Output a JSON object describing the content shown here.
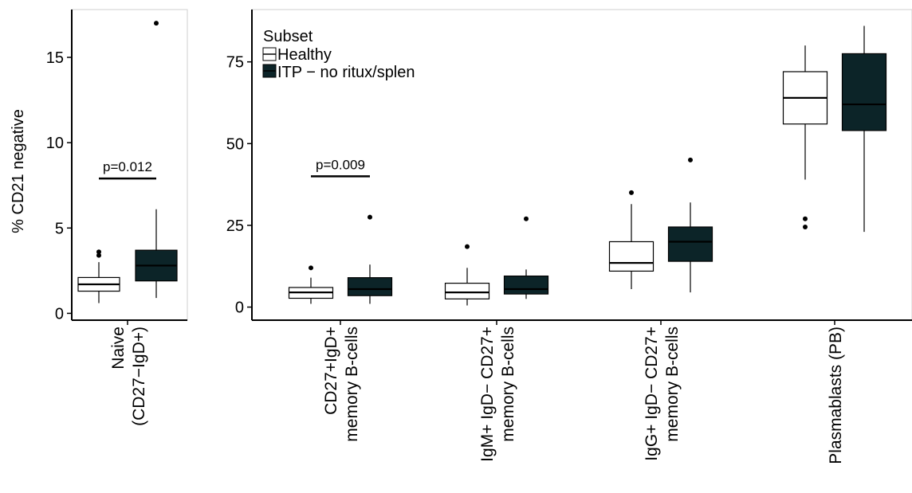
{
  "chart_data": [
    {
      "type": "box",
      "title": "",
      "xlabel": "",
      "ylabel": "% CD21 negative",
      "ylim": [
        -0.4,
        17.8
      ],
      "yticks": [
        0,
        5,
        10,
        15
      ],
      "categories": [
        {
          "id": "naive",
          "lines": [
            "Naive",
            "(CD27−IgD+)"
          ]
        }
      ],
      "series": [
        {
          "name": "Healthy",
          "color": "#ffffff",
          "boxes": [
            {
              "category": "naive",
              "whisker_low": 0.6,
              "q1": 1.3,
              "median": 1.7,
              "q3": 2.1,
              "whisker_high": 3.0,
              "outliers": [
                3.4,
                3.6
              ]
            }
          ]
        },
        {
          "name": "ITP − no ritux/splen",
          "color": "#0c2428",
          "boxes": [
            {
              "category": "naive",
              "whisker_low": 0.9,
              "q1": 1.9,
              "median": 2.8,
              "q3": 3.7,
              "whisker_high": 6.1,
              "outliers": [
                17.0
              ]
            }
          ]
        }
      ],
      "annotations": [
        {
          "text": "p=0.012",
          "from": 0,
          "to": 1,
          "category": "naive",
          "y": 7.9
        }
      ]
    },
    {
      "type": "box",
      "title": "",
      "xlabel": "",
      "ylabel": "",
      "ylim": [
        -4,
        91
      ],
      "yticks": [
        0,
        25,
        50,
        75
      ],
      "legend": {
        "title": "Subset",
        "placement": "top-left"
      },
      "categories": [
        {
          "id": "cd27igd",
          "lines": [
            "CD27+IgD+",
            "memory B-cells"
          ]
        },
        {
          "id": "igm",
          "lines": [
            "IgM+ IgD− CD27+",
            "memory B-cells"
          ]
        },
        {
          "id": "igg",
          "lines": [
            "IgG+ IgD− CD27+",
            "memory B-cells"
          ]
        },
        {
          "id": "pb",
          "lines": [
            "Plasmablasts (PB)"
          ]
        }
      ],
      "series": [
        {
          "name": "Healthy",
          "color": "#ffffff",
          "boxes": [
            {
              "category": "cd27igd",
              "whisker_low": 1.0,
              "q1": 2.7,
              "median": 4.5,
              "q3": 6.0,
              "whisker_high": 9.0,
              "outliers": [
                12.0
              ]
            },
            {
              "category": "igm",
              "whisker_low": 0.5,
              "q1": 2.5,
              "median": 4.5,
              "q3": 7.3,
              "whisker_high": 12.0,
              "outliers": [
                18.5
              ]
            },
            {
              "category": "igg",
              "whisker_low": 5.5,
              "q1": 11.0,
              "median": 13.5,
              "q3": 20.0,
              "whisker_high": 31.5,
              "outliers": [
                35.0
              ]
            },
            {
              "category": "pb",
              "whisker_low": 39.0,
              "q1": 56.0,
              "median": 64.0,
              "q3": 72.0,
              "whisker_high": 80.0,
              "outliers": [
                24.5,
                27.0
              ]
            }
          ]
        },
        {
          "name": "ITP − no ritux/splen",
          "color": "#0c2428",
          "boxes": [
            {
              "category": "cd27igd",
              "whisker_low": 1.0,
              "q1": 3.5,
              "median": 5.5,
              "q3": 9.0,
              "whisker_high": 13.0,
              "outliers": [
                27.5
              ]
            },
            {
              "category": "igm",
              "whisker_low": 2.5,
              "q1": 4.0,
              "median": 5.5,
              "q3": 9.5,
              "whisker_high": 11.5,
              "outliers": [
                27.0
              ]
            },
            {
              "category": "igg",
              "whisker_low": 4.5,
              "q1": 14.0,
              "median": 20.0,
              "q3": 24.5,
              "whisker_high": 32.0,
              "outliers": [
                45.0
              ]
            },
            {
              "category": "pb",
              "whisker_low": 23.0,
              "q1": 54.0,
              "median": 62.0,
              "q3": 77.5,
              "whisker_high": 86.0,
              "outliers": []
            }
          ]
        }
      ],
      "annotations": [
        {
          "text": "p=0.009",
          "from": 0,
          "to": 1,
          "category": "cd27igd",
          "y": 40.0
        }
      ]
    }
  ]
}
